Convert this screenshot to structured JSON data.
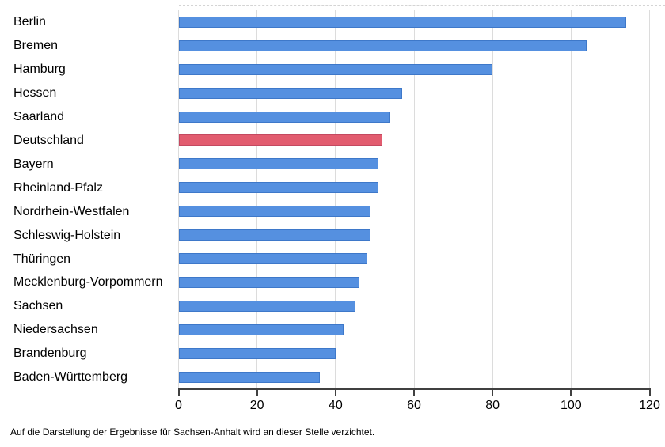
{
  "chart_data": {
    "type": "bar",
    "orientation": "horizontal",
    "title": "",
    "xlabel": "",
    "ylabel": "",
    "xlim": [
      0,
      120
    ],
    "x_ticks": [
      0,
      20,
      40,
      60,
      80,
      100,
      120
    ],
    "grid": true,
    "legend": "none",
    "categories": [
      "Berlin",
      "Bremen",
      "Hamburg",
      "Hessen",
      "Saarland",
      "Deutschland",
      "Bayern",
      "Rheinland-Pfalz",
      "Nordrhein-Westfalen",
      "Schleswig-Holstein",
      "Thüringen",
      "Mecklenburg-Vorpommern",
      "Sachsen",
      "Niedersachsen",
      "Brandenburg",
      "Baden-Württemberg"
    ],
    "values": [
      114,
      104,
      80,
      57,
      54,
      52,
      51,
      51,
      49,
      49,
      48,
      46,
      45,
      42,
      40,
      36
    ],
    "highlight_category": "Deutschland",
    "colors": {
      "bar_fill": "#5590E0",
      "bar_border": "#3E78C9",
      "highlight_fill": "#E25C6F",
      "highlight_border": "#C44960",
      "gridline": "#dcdcdc",
      "axis": "#404040",
      "text": "#000000"
    }
  },
  "footer": {
    "note": "Auf die Darstellung der Ergebnisse für Sachsen-Anhalt wird an dieser Stelle verzichtet."
  }
}
